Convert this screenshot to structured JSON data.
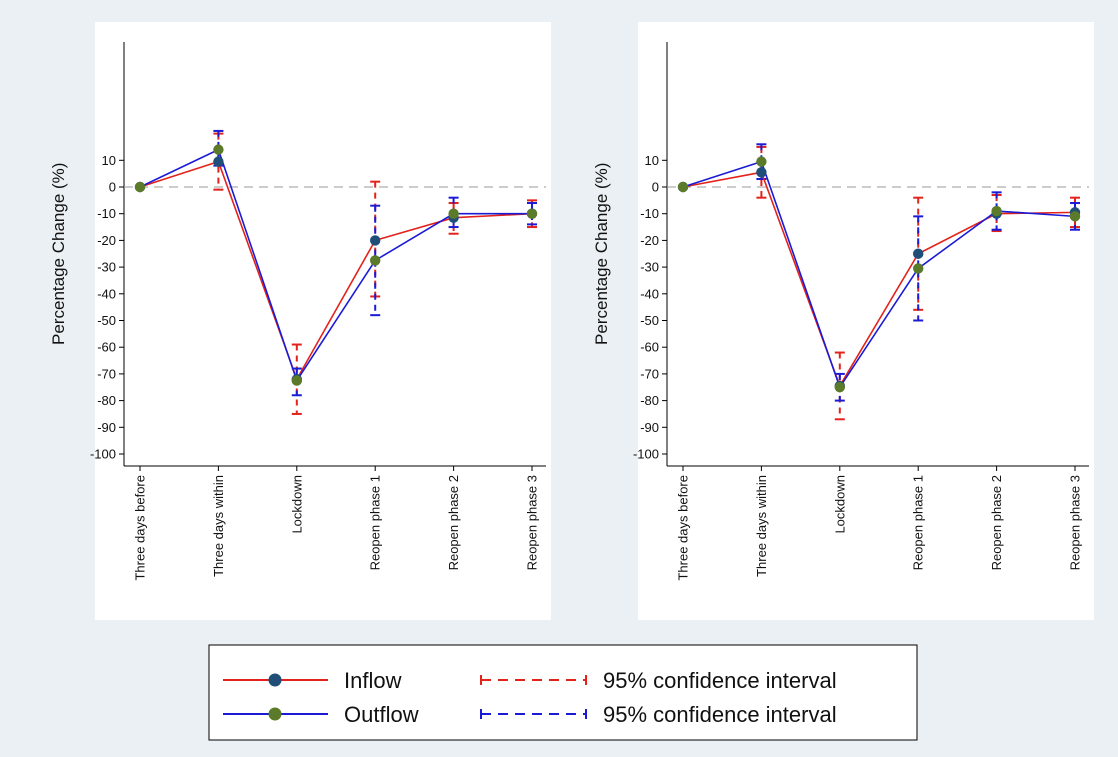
{
  "colors": {
    "background": "#eaf0f3",
    "plot_background": "#ffffff",
    "reference_line": "#9a9a9a",
    "inflow_line": "#e3221b",
    "outflow_line": "#1b1bd6",
    "inflow_marker": "#1f4e79",
    "outflow_marker": "#5b7a2a"
  },
  "legend": {
    "items": [
      {
        "label": "Inflow",
        "style": "line-marker",
        "line_color": "#e3221b",
        "marker_color": "#1f4e79"
      },
      {
        "label": "95% confidence interval",
        "style": "dashed-ci",
        "line_color": "#e3221b"
      },
      {
        "label": "Outflow",
        "style": "line-marker",
        "line_color": "#1b1bd6",
        "marker_color": "#5b7a2a"
      },
      {
        "label": "95% confidence interval",
        "style": "dashed-ci",
        "line_color": "#1b1bd6"
      }
    ],
    "placement": "bottom-center"
  },
  "chart_data": [
    {
      "type": "line",
      "ylabel": "Percentage Change (%)",
      "xlabel": "",
      "title": "",
      "categories": [
        "Three days before",
        "Three days within",
        "Lockdown",
        "Reopen phase 1",
        "Reopen phase 2",
        "Reopen phase 3"
      ],
      "yticks": [
        10,
        0,
        -10,
        -20,
        -30,
        -40,
        -50,
        -60,
        -70,
        -80,
        -90,
        -100
      ],
      "ylim": [
        -104,
        58
      ],
      "reference_line": 0,
      "grid": false,
      "series": [
        {
          "name": "Inflow",
          "values": [
            0,
            9.5,
            -72,
            -20,
            -11.5,
            -10
          ],
          "ci_low": [
            0,
            -1,
            -85,
            -41,
            -17.5,
            -15
          ],
          "ci_high": [
            0,
            20,
            -59,
            2,
            -6,
            -5
          ]
        },
        {
          "name": "Outflow",
          "values": [
            0,
            14,
            -72.5,
            -27.5,
            -10,
            -10
          ],
          "ci_low": [
            0,
            8,
            -78,
            -48,
            -15,
            -14
          ],
          "ci_high": [
            0,
            21,
            -68,
            -7,
            -4,
            -6
          ]
        }
      ]
    },
    {
      "type": "line",
      "ylabel": "Percentage Change (%)",
      "xlabel": "",
      "title": "",
      "categories": [
        "Three days before",
        "Three days within",
        "Lockdown",
        "Reopen phase 1",
        "Reopen phase 2",
        "Reopen phase 3"
      ],
      "yticks": [
        10,
        0,
        -10,
        -20,
        -30,
        -40,
        -50,
        -60,
        -70,
        -80,
        -90,
        -100
      ],
      "ylim": [
        -104,
        58
      ],
      "reference_line": 0,
      "grid": false,
      "series": [
        {
          "name": "Inflow",
          "values": [
            0,
            5.5,
            -74.5,
            -25,
            -10,
            -9.5
          ],
          "ci_low": [
            0,
            -4,
            -87,
            -46,
            -16.5,
            -15
          ],
          "ci_high": [
            0,
            15,
            -62,
            -4,
            -3,
            -4
          ]
        },
        {
          "name": "Outflow",
          "values": [
            0,
            9.5,
            -75,
            -30.5,
            -9,
            -11
          ],
          "ci_low": [
            0,
            3,
            -80,
            -50,
            -16,
            -16
          ],
          "ci_high": [
            0,
            16,
            -70,
            -11,
            -2,
            -6
          ]
        }
      ]
    }
  ]
}
